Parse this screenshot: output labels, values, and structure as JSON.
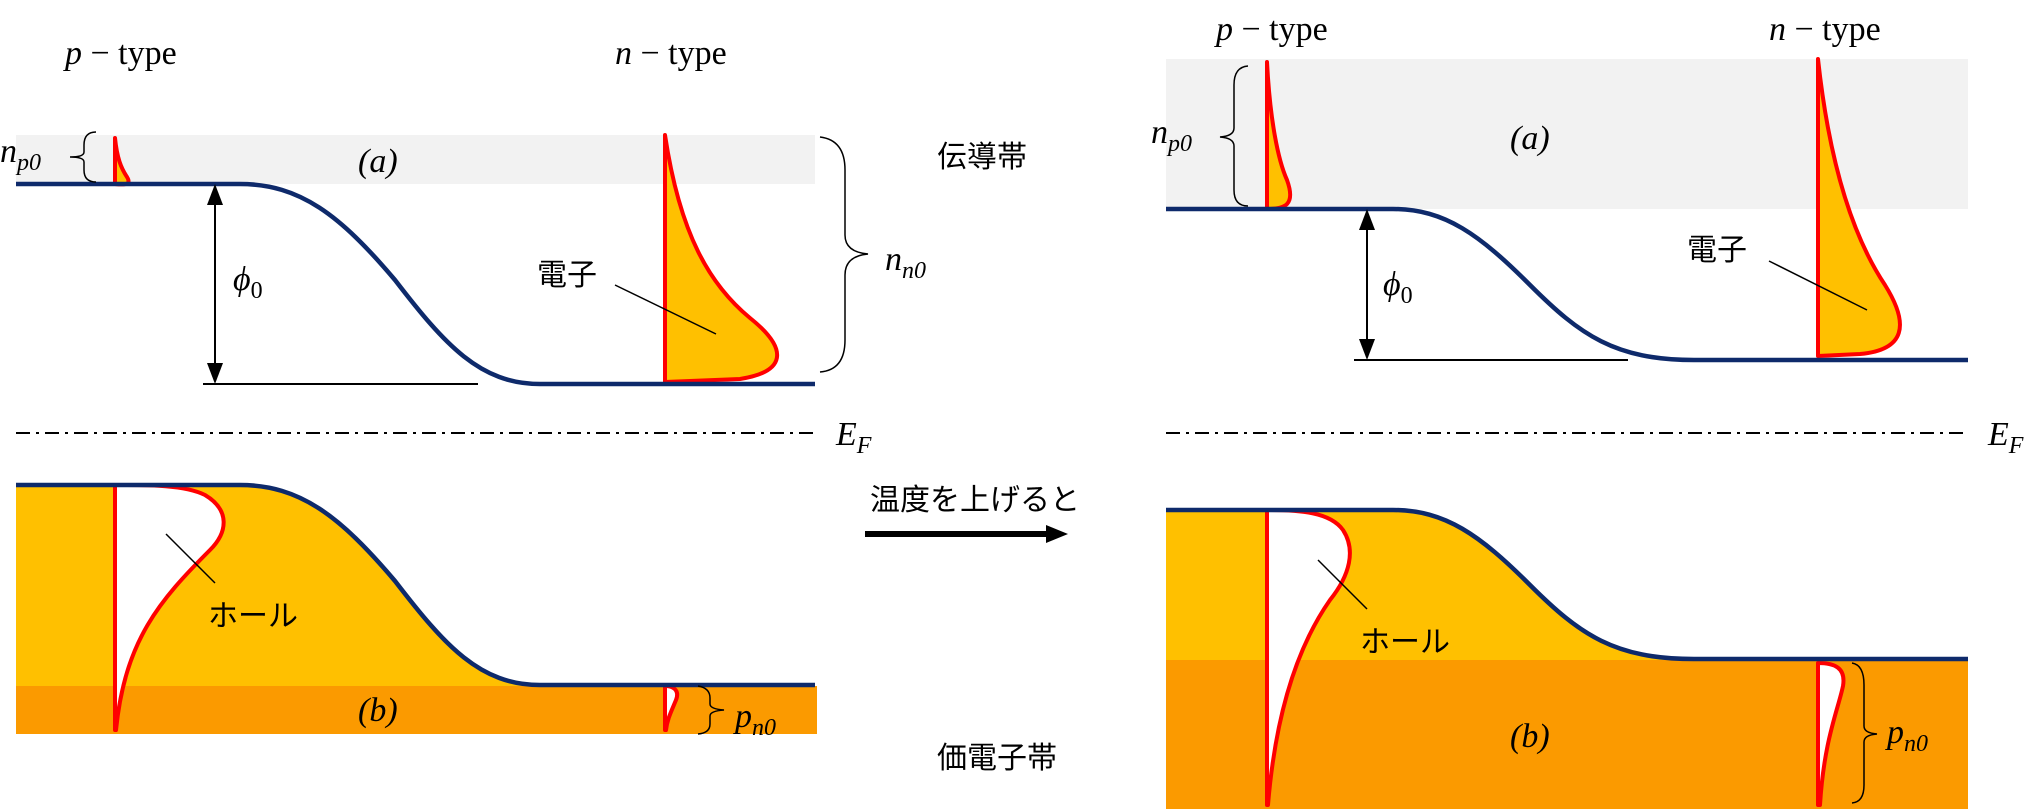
{
  "labels": {
    "p_type": {
      "italic": "p",
      "rest": " − type"
    },
    "n_type": {
      "italic": "n",
      "rest": " − type"
    },
    "band_a": "(a)",
    "band_b": "(b)",
    "phi": {
      "base": "ϕ",
      "sub": "0"
    },
    "n_p0": {
      "base": "n",
      "sub": "p0"
    },
    "n_n0": {
      "base": "n",
      "sub": "n0"
    },
    "p_n0": {
      "base": "p",
      "sub": "n0"
    },
    "fermi": {
      "base": "E",
      "sub": "F"
    },
    "electron": "電子",
    "hole": "ホール",
    "conduction_band": "伝導帯",
    "valence_band": "価電子帯",
    "raise_temperature": "温度を上げると"
  },
  "colors": {
    "conduction_band_fill": "#F2F2F2",
    "electron_fill": "#FFC000",
    "valence_fill": "#FFC000",
    "valence_deep_fill": "#FB9A00",
    "band_edge": "#0E2A6B",
    "distribution_edge": "#FF0000"
  }
}
